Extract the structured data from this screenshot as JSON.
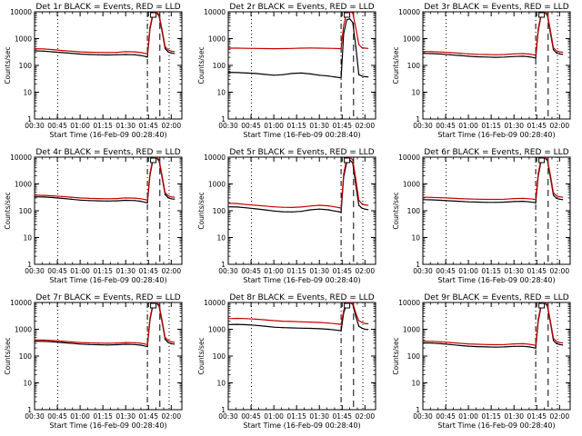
{
  "figure": {
    "background": "#ffffff"
  },
  "shared": {
    "ylabel": "Counts/sec",
    "xlabel": "Start Time (16-Feb-09 00:28:40)",
    "x_ticks": [
      "00:30",
      "00:45",
      "01:00",
      "01:15",
      "01:30",
      "01:45",
      "02:00"
    ],
    "x_tick_values": [
      30,
      45,
      60,
      75,
      90,
      105,
      120
    ],
    "xlim": [
      30,
      127
    ],
    "y_ticks": [
      "1",
      "10",
      "100",
      "1000",
      "10000"
    ],
    "y_tick_values": [
      1,
      10,
      100,
      1000,
      10000
    ],
    "ylim": [
      1,
      10000
    ],
    "y_scale": "log",
    "series_colors": {
      "events": "#000000",
      "lld": "#cc0000"
    },
    "vlines": [
      {
        "x": 45.3,
        "style": "dotted"
      },
      {
        "x": 104.3,
        "style": "dash-dot"
      },
      {
        "x": 112.5,
        "style": "dashed"
      },
      {
        "x": 118.6,
        "style": "dotted"
      }
    ],
    "marker_x": 108.2
  },
  "chart_data": [
    {
      "type": "line",
      "title": "Det 1r BLACK = Events, RED = LLD",
      "x": [
        30,
        36,
        42,
        48,
        54,
        60,
        66,
        72,
        78,
        84,
        90,
        96,
        100,
        103,
        104.3,
        106,
        108,
        110,
        112,
        114,
        116,
        118,
        120,
        122
      ],
      "series": [
        {
          "name": "Events",
          "values": [
            350,
            340,
            320,
            300,
            285,
            265,
            255,
            250,
            245,
            250,
            255,
            250,
            235,
            215,
            205,
            2200,
            8500,
            10000,
            7000,
            1800,
            420,
            320,
            290,
            280
          ]
        },
        {
          "name": "LLD",
          "values": [
            420,
            410,
            390,
            360,
            340,
            320,
            310,
            305,
            300,
            305,
            325,
            320,
            300,
            280,
            270,
            2600,
            9500,
            10000,
            8000,
            2100,
            500,
            380,
            340,
            330
          ]
        }
      ]
    },
    {
      "type": "line",
      "title": "Det 2r BLACK = Events, RED = LLD",
      "x": [
        30,
        36,
        42,
        48,
        54,
        60,
        66,
        72,
        78,
        84,
        90,
        96,
        100,
        103,
        104.3,
        106,
        108,
        110,
        112,
        114,
        116,
        118,
        120,
        122
      ],
      "series": [
        {
          "name": "Events",
          "values": [
            55,
            54,
            52,
            50,
            46,
            43,
            45,
            50,
            52,
            48,
            43,
            40,
            37,
            35,
            34,
            1500,
            5000,
            5500,
            4000,
            500,
            45,
            40,
            38,
            37
          ]
        },
        {
          "name": "LLD",
          "values": [
            440,
            440,
            435,
            430,
            425,
            420,
            425,
            430,
            440,
            445,
            440,
            435,
            430,
            425,
            420,
            3000,
            10000,
            10000,
            9000,
            2500,
            600,
            460,
            440,
            430
          ]
        }
      ]
    },
    {
      "type": "line",
      "title": "Det 3r BLACK = Events, RED = LLD",
      "x": [
        30,
        36,
        42,
        48,
        54,
        60,
        66,
        72,
        78,
        84,
        90,
        96,
        100,
        103,
        104.3,
        106,
        108,
        110,
        112,
        114,
        116,
        118,
        120,
        122
      ],
      "series": [
        {
          "name": "Events",
          "values": [
            280,
            275,
            265,
            250,
            235,
            220,
            210,
            205,
            200,
            205,
            215,
            220,
            210,
            195,
            185,
            2000,
            8000,
            10000,
            7500,
            1600,
            380,
            290,
            270,
            260
          ]
        },
        {
          "name": "LLD",
          "values": [
            330,
            325,
            315,
            300,
            285,
            270,
            260,
            255,
            250,
            255,
            270,
            275,
            265,
            250,
            240,
            2400,
            9000,
            10000,
            8500,
            2000,
            450,
            350,
            320,
            310
          ]
        }
      ]
    },
    {
      "type": "line",
      "title": "Det 4r BLACK = Events, RED = LLD",
      "x": [
        30,
        36,
        42,
        48,
        54,
        60,
        66,
        72,
        78,
        84,
        90,
        96,
        100,
        103,
        104.3,
        106,
        108,
        110,
        112,
        114,
        116,
        118,
        120,
        122
      ],
      "series": [
        {
          "name": "Events",
          "values": [
            330,
            325,
            310,
            290,
            270,
            250,
            240,
            235,
            230,
            235,
            245,
            240,
            225,
            205,
            195,
            2100,
            8200,
            10000,
            7200,
            1700,
            400,
            300,
            280,
            270
          ]
        },
        {
          "name": "LLD",
          "values": [
            380,
            375,
            360,
            340,
            320,
            300,
            290,
            285,
            280,
            285,
            300,
            295,
            280,
            260,
            250,
            2500,
            9300,
            10000,
            8200,
            2000,
            470,
            360,
            330,
            320
          ]
        }
      ]
    },
    {
      "type": "line",
      "title": "Det 5r BLACK = Events, RED = LLD",
      "x": [
        30,
        36,
        42,
        48,
        54,
        60,
        66,
        72,
        78,
        84,
        90,
        96,
        100,
        103,
        104.3,
        106,
        108,
        110,
        112,
        114,
        116,
        118,
        120,
        122
      ],
      "series": [
        {
          "name": "Events",
          "values": [
            140,
            138,
            128,
            118,
            108,
            98,
            92,
            90,
            95,
            108,
            115,
            108,
            98,
            92,
            88,
            1800,
            6500,
            8000,
            6000,
            900,
            160,
            125,
            115,
            110
          ]
        },
        {
          "name": "LLD",
          "values": [
            190,
            185,
            170,
            160,
            150,
            140,
            135,
            132,
            138,
            150,
            160,
            152,
            140,
            130,
            125,
            2300,
            9000,
            10000,
            8000,
            1500,
            250,
            180,
            165,
            160
          ]
        }
      ]
    },
    {
      "type": "line",
      "title": "Det 6r BLACK = Events, RED = LLD",
      "x": [
        30,
        36,
        42,
        48,
        54,
        60,
        66,
        72,
        78,
        84,
        90,
        96,
        100,
        103,
        104.3,
        106,
        108,
        110,
        112,
        114,
        116,
        118,
        120,
        122
      ],
      "series": [
        {
          "name": "Events",
          "values": [
            260,
            255,
            245,
            235,
            225,
            215,
            210,
            205,
            205,
            210,
            220,
            225,
            215,
            205,
            195,
            2000,
            8000,
            10000,
            7500,
            1700,
            380,
            290,
            270,
            260
          ]
        },
        {
          "name": "LLD",
          "values": [
            320,
            315,
            305,
            295,
            285,
            275,
            270,
            265,
            265,
            270,
            285,
            290,
            280,
            270,
            260,
            2500,
            9300,
            10000,
            8500,
            2100,
            470,
            360,
            330,
            320
          ]
        }
      ]
    },
    {
      "type": "line",
      "title": "Det 7r BLACK = Events, RED = LLD",
      "x": [
        30,
        36,
        42,
        48,
        54,
        60,
        66,
        72,
        78,
        84,
        90,
        96,
        100,
        103,
        104.3,
        106,
        108,
        110,
        112,
        114,
        116,
        118,
        120,
        122
      ],
      "series": [
        {
          "name": "Events",
          "values": [
            360,
            355,
            340,
            320,
            300,
            280,
            270,
            265,
            260,
            265,
            275,
            270,
            255,
            235,
            225,
            2200,
            8400,
            10000,
            7300,
            1800,
            420,
            320,
            290,
            280
          ]
        },
        {
          "name": "LLD",
          "values": [
            400,
            395,
            380,
            360,
            340,
            320,
            310,
            305,
            300,
            305,
            320,
            315,
            300,
            280,
            270,
            2600,
            9500,
            10000,
            8300,
            2100,
            490,
            380,
            340,
            330
          ]
        }
      ]
    },
    {
      "type": "line",
      "title": "Det 8r BLACK = Events, RED = LLD",
      "x": [
        30,
        36,
        42,
        48,
        54,
        60,
        66,
        72,
        78,
        84,
        90,
        96,
        100,
        103,
        104.3,
        106,
        108,
        110,
        112,
        114,
        116,
        118,
        120,
        122
      ],
      "series": [
        {
          "name": "Events",
          "values": [
            1500,
            1520,
            1480,
            1400,
            1300,
            1200,
            1150,
            1120,
            1100,
            1080,
            1050,
            1000,
            950,
            900,
            880,
            4000,
            9000,
            10000,
            8500,
            3000,
            1300,
            1100,
            1000,
            980
          ]
        },
        {
          "name": "LLD",
          "values": [
            2500,
            2550,
            2500,
            2380,
            2250,
            2100,
            2000,
            1950,
            1900,
            1850,
            1800,
            1700,
            1620,
            1550,
            1500,
            5000,
            10000,
            10000,
            9500,
            4000,
            2100,
            1800,
            1650,
            1600
          ]
        }
      ]
    },
    {
      "type": "line",
      "title": "Det 9r BLACK = Events, RED = LLD",
      "x": [
        30,
        36,
        42,
        48,
        54,
        60,
        66,
        72,
        78,
        84,
        90,
        96,
        100,
        103,
        104.3,
        106,
        108,
        110,
        112,
        114,
        116,
        118,
        120,
        122
      ],
      "series": [
        {
          "name": "Events",
          "values": [
            310,
            305,
            290,
            270,
            250,
            235,
            225,
            220,
            215,
            220,
            230,
            232,
            220,
            205,
            195,
            2000,
            8000,
            10000,
            7400,
            1700,
            380,
            290,
            270,
            260
          ]
        },
        {
          "name": "LLD",
          "values": [
            360,
            355,
            340,
            320,
            300,
            285,
            275,
            270,
            265,
            270,
            285,
            290,
            275,
            260,
            250,
            2400,
            9200,
            10000,
            8400,
            2000,
            460,
            350,
            320,
            310
          ]
        }
      ]
    }
  ]
}
